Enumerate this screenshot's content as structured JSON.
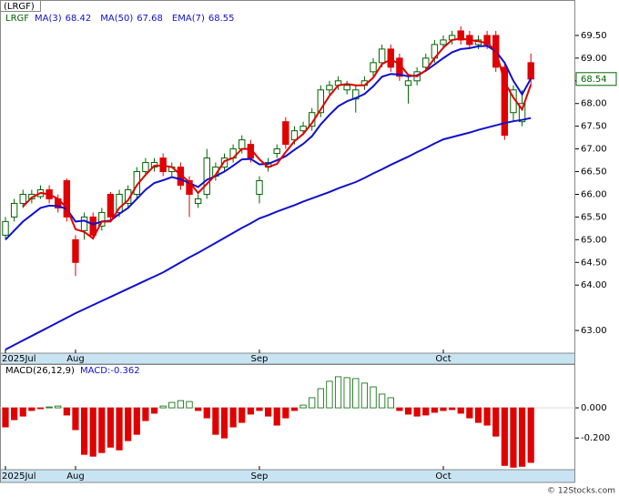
{
  "chart_data": [
    {
      "type": "candlestick",
      "title": "(LRGF)",
      "symbol": "LRGF",
      "categories": [
        "2025Jul",
        null,
        null,
        null,
        null,
        null,
        null,
        null,
        "Aug",
        null,
        null,
        null,
        null,
        null,
        null,
        null,
        null,
        null,
        null,
        null,
        null,
        null,
        null,
        null,
        null,
        null,
        null,
        null,
        null,
        "Sep",
        null,
        null,
        null,
        null,
        null,
        null,
        null,
        null,
        null,
        null,
        null,
        null,
        null,
        null,
        null,
        null,
        null,
        null,
        null,
        null,
        "Oct",
        null,
        null,
        null,
        null,
        null,
        null,
        null,
        null,
        null,
        null
      ],
      "open": [
        65.1,
        65.5,
        65.8,
        65.9,
        65.95,
        66.1,
        65.9,
        66.3,
        65.0,
        65.2,
        65.5,
        65.3,
        66.0,
        65.6,
        65.8,
        66.0,
        66.5,
        66.6,
        66.8,
        66.5,
        66.6,
        66.3,
        65.8,
        66.0,
        66.4,
        66.6,
        66.8,
        67.0,
        67.1,
        66.0,
        66.6,
        66.9,
        67.6,
        67.2,
        67.4,
        67.5,
        67.8,
        68.3,
        68.4,
        68.3,
        68.1,
        68.4,
        68.7,
        68.9,
        69.2,
        69.0,
        68.4,
        68.5,
        68.8,
        69.0,
        69.3,
        69.4,
        69.6,
        69.5,
        69.3,
        69.5,
        69.5,
        68.8,
        67.8,
        67.6,
        68.9
      ],
      "high": [
        65.5,
        65.9,
        66.1,
        66.1,
        66.2,
        66.2,
        66.0,
        66.35,
        65.1,
        65.6,
        65.6,
        65.7,
        66.05,
        66.1,
        66.2,
        66.6,
        66.8,
        66.8,
        66.9,
        66.7,
        66.7,
        66.4,
        66.0,
        67.0,
        66.7,
        66.9,
        67.1,
        67.3,
        67.2,
        66.4,
        66.8,
        67.1,
        67.7,
        67.5,
        67.6,
        67.9,
        68.4,
        68.5,
        68.6,
        68.5,
        68.4,
        68.6,
        69.0,
        69.3,
        69.3,
        69.1,
        68.6,
        68.8,
        69.1,
        69.4,
        69.5,
        69.6,
        69.7,
        69.6,
        69.5,
        69.6,
        69.6,
        68.9,
        68.4,
        68.3,
        69.1
      ],
      "low": [
        65.0,
        65.4,
        65.7,
        65.8,
        65.9,
        65.8,
        65.6,
        65.4,
        64.2,
        65.0,
        65.0,
        65.2,
        65.4,
        65.5,
        65.7,
        65.9,
        66.4,
        66.5,
        66.4,
        66.4,
        66.1,
        65.5,
        65.7,
        65.9,
        66.3,
        66.5,
        66.7,
        66.9,
        66.7,
        65.8,
        66.5,
        66.8,
        67.0,
        67.1,
        67.3,
        67.4,
        67.7,
        68.2,
        68.3,
        68.2,
        67.8,
        68.3,
        68.6,
        68.8,
        68.7,
        68.5,
        68.0,
        68.4,
        68.7,
        68.9,
        69.2,
        69.3,
        69.3,
        69.2,
        69.2,
        69.2,
        68.7,
        67.2,
        67.6,
        67.5,
        68.4
      ],
      "close": [
        65.4,
        65.8,
        66.0,
        66.0,
        66.1,
        65.9,
        65.7,
        65.5,
        64.5,
        65.5,
        65.1,
        65.6,
        65.5,
        66.0,
        66.1,
        66.5,
        66.7,
        66.7,
        66.5,
        66.6,
        66.2,
        66.0,
        65.9,
        66.8,
        66.6,
        66.8,
        67.0,
        67.2,
        66.8,
        66.3,
        66.7,
        67.0,
        67.1,
        67.4,
        67.5,
        67.8,
        68.3,
        68.4,
        68.5,
        68.4,
        68.3,
        68.5,
        68.9,
        69.2,
        68.8,
        68.6,
        68.5,
        68.7,
        69.0,
        69.3,
        69.4,
        69.5,
        69.4,
        69.3,
        69.4,
        69.3,
        68.8,
        67.3,
        68.3,
        68.0,
        68.54
      ],
      "up_color": "#006400",
      "down_color": "#e00000",
      "series": [
        {
          "name": "MA(3)",
          "legend_value": 68.42,
          "color": "#e00000",
          "values": [
            null,
            null,
            65.73,
            65.93,
            66.03,
            66.0,
            65.9,
            65.7,
            65.23,
            65.17,
            65.03,
            65.4,
            65.4,
            65.7,
            65.87,
            66.2,
            66.43,
            66.63,
            66.63,
            66.6,
            66.43,
            66.27,
            66.03,
            66.23,
            66.43,
            66.73,
            66.8,
            67.0,
            67.0,
            66.77,
            66.6,
            66.67,
            66.93,
            67.17,
            67.33,
            67.57,
            67.87,
            68.17,
            68.4,
            68.43,
            68.4,
            68.4,
            68.57,
            68.87,
            68.97,
            68.87,
            68.63,
            68.6,
            68.73,
            69.0,
            69.23,
            69.4,
            69.43,
            69.4,
            69.37,
            69.33,
            69.17,
            68.47,
            68.13,
            67.87,
            68.42
          ]
        },
        {
          "name": "MA(50)",
          "legend_value": 67.68,
          "color": "#1010d0",
          "values": [
            62.58,
            62.68,
            62.78,
            62.88,
            62.98,
            63.08,
            63.18,
            63.28,
            63.38,
            63.47,
            63.56,
            63.65,
            63.74,
            63.83,
            63.92,
            64.01,
            64.1,
            64.19,
            64.28,
            64.39,
            64.5,
            64.61,
            64.71,
            64.82,
            64.93,
            65.04,
            65.15,
            65.26,
            65.36,
            65.47,
            65.54,
            65.62,
            65.69,
            65.76,
            65.84,
            65.91,
            65.98,
            66.05,
            66.13,
            66.2,
            66.27,
            66.36,
            66.46,
            66.55,
            66.65,
            66.74,
            66.83,
            66.93,
            67.02,
            67.12,
            67.21,
            67.26,
            67.31,
            67.36,
            67.42,
            67.47,
            67.52,
            67.57,
            67.61,
            67.64,
            67.68
          ]
        },
        {
          "name": "EMA(7)",
          "legend_value": 68.55,
          "color": "#1010d0",
          "values": [
            65.0,
            65.2,
            65.4,
            65.55,
            65.7,
            65.75,
            65.74,
            65.68,
            65.4,
            65.42,
            65.34,
            65.4,
            65.42,
            65.57,
            65.7,
            65.9,
            66.1,
            66.25,
            66.31,
            66.38,
            66.33,
            66.25,
            66.16,
            66.32,
            66.4,
            66.5,
            66.63,
            66.77,
            66.78,
            66.66,
            66.67,
            66.75,
            66.84,
            66.98,
            67.11,
            67.28,
            67.54,
            67.75,
            67.94,
            68.05,
            68.12,
            68.21,
            68.38,
            68.59,
            68.65,
            68.64,
            68.6,
            68.62,
            68.72,
            68.86,
            69.0,
            69.13,
            69.2,
            69.22,
            69.26,
            69.27,
            69.15,
            68.9,
            68.5,
            68.2,
            68.55
          ]
        }
      ],
      "last_value": 68.54,
      "ylim": [
        62.5,
        70.0
      ],
      "yticks": [
        {
          "value": 69.5,
          "label": "69.50"
        },
        {
          "value": 69.0,
          "label": "69.00"
        },
        {
          "value": 68.5,
          "label": "68.50"
        },
        {
          "value": 68.0,
          "label": "68.00"
        },
        {
          "value": 67.5,
          "label": "67.50"
        },
        {
          "value": 67.0,
          "label": "67.00"
        },
        {
          "value": 66.5,
          "label": "66.50"
        },
        {
          "value": 66.0,
          "label": "66.00"
        },
        {
          "value": 65.5,
          "label": "65.50"
        },
        {
          "value": 65.0,
          "label": "65.00"
        },
        {
          "value": 64.5,
          "label": "64.50"
        },
        {
          "value": 64.0,
          "label": "64.00"
        },
        {
          "value": 63.0,
          "label": "63.00"
        }
      ]
    },
    {
      "type": "bar",
      "title": "MACD(26,12,9)",
      "value_label": "MACD:-0.362",
      "categories": [
        "2025Jul",
        null,
        null,
        null,
        null,
        null,
        null,
        null,
        "Aug",
        null,
        null,
        null,
        null,
        null,
        null,
        null,
        null,
        null,
        null,
        null,
        null,
        null,
        null,
        null,
        null,
        null,
        null,
        null,
        null,
        "Sep",
        null,
        null,
        null,
        null,
        null,
        null,
        null,
        null,
        null,
        null,
        null,
        null,
        null,
        null,
        null,
        null,
        null,
        null,
        null,
        null,
        "Oct",
        null,
        null,
        null,
        null,
        null,
        null,
        null,
        null,
        null,
        null
      ],
      "values": [
        -0.127,
        -0.079,
        -0.055,
        -0.018,
        -0.006,
        0.006,
        0.012,
        -0.048,
        -0.145,
        -0.309,
        -0.321,
        -0.297,
        -0.261,
        -0.279,
        -0.218,
        -0.176,
        -0.085,
        -0.036,
        0.012,
        0.036,
        0.048,
        0.042,
        -0.018,
        -0.067,
        -0.176,
        -0.2,
        -0.127,
        -0.097,
        -0.042,
        -0.018,
        -0.055,
        -0.115,
        -0.067,
        -0.018,
        0.018,
        0.067,
        0.127,
        0.176,
        0.206,
        0.2,
        0.194,
        0.164,
        0.139,
        0.091,
        0.067,
        -0.018,
        -0.042,
        -0.055,
        -0.048,
        -0.03,
        -0.018,
        -0.012,
        -0.036,
        -0.067,
        -0.097,
        -0.115,
        -0.188,
        -0.382,
        -0.394,
        -0.388,
        -0.362
      ],
      "up_color": "#006400",
      "down_color": "#e00000",
      "ylim": [
        -0.41,
        0.29
      ],
      "yticks": [
        {
          "value": 0,
          "label": "0.000"
        },
        {
          "value": -0.2,
          "label": "-0.200"
        }
      ]
    }
  ],
  "credit": "© 12Stocks.com"
}
